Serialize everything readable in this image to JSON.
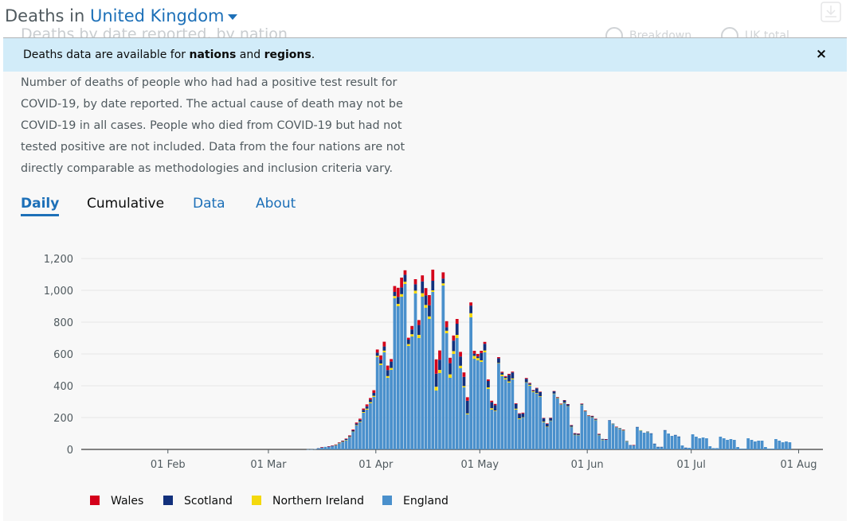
{
  "header": {
    "title_prefix": "Deaths in",
    "location": "United Kingdom",
    "ghost_title": "Deaths by date reported, by nation",
    "ghost_option_1": "Breakdown",
    "ghost_option_2": "UK total"
  },
  "banner": {
    "text_1": "Deaths data are available for ",
    "link_1": "nations",
    "text_2": " and ",
    "link_2": "regions",
    "text_3": ".",
    "close_label": "×"
  },
  "description": "Number of deaths of people who had had a positive test result for COVID-19, by date reported. The actual cause of death may not be COVID-19 in all cases. People who died from COVID-19 but had not tested positive are not included. Data from the four nations are not directly comparable as methodologies and inclusion criteria vary.",
  "tabs": [
    {
      "label": "Daily",
      "active": true
    },
    {
      "label": "Cumulative",
      "active": false
    },
    {
      "label": "Data",
      "active": false
    },
    {
      "label": "About",
      "active": false
    }
  ],
  "colors": {
    "wales": "#d4001a",
    "scotland": "#12307c",
    "northern_ireland": "#f4d90d",
    "england": "#4a90cc",
    "link": "#1d70b8"
  },
  "chart_data": {
    "type": "bar",
    "stacked": true,
    "x_start": "2020-01-07",
    "x_end": "2020-08-08",
    "x_tick_labels": [
      "01 Feb",
      "01 Mar",
      "01 Apr",
      "01 May",
      "01 Jun",
      "01 Jul",
      "01 Aug"
    ],
    "x_tick_dates": [
      "2020-02-01",
      "2020-03-01",
      "2020-04-01",
      "2020-05-01",
      "2020-06-01",
      "2020-07-01",
      "2020-08-01"
    ],
    "ylim": [
      0,
      1200
    ],
    "y_ticks": [
      0,
      200,
      400,
      600,
      800,
      1000,
      1200
    ],
    "y_tick_labels": [
      "0",
      "200",
      "400",
      "600",
      "800",
      "1,000",
      "1,200"
    ],
    "grid": true,
    "legend_position": "bottom-left",
    "series": [
      {
        "name": "Wales",
        "color": "#d4001a",
        "values": [
          0,
          0,
          0,
          0,
          0,
          0,
          0,
          0,
          0,
          0,
          0,
          0,
          0,
          0,
          0,
          0,
          0,
          0,
          0,
          0,
          0,
          0,
          0,
          0,
          0,
          0,
          0,
          0,
          0,
          0,
          0,
          0,
          0,
          0,
          0,
          0,
          0,
          0,
          0,
          0,
          0,
          0,
          0,
          0,
          0,
          0,
          0,
          0,
          0,
          0,
          0,
          0,
          0,
          0,
          0,
          0,
          0,
          0,
          0,
          0,
          0,
          0,
          0,
          0,
          0,
          0,
          0,
          0,
          0,
          1,
          0,
          1,
          1,
          2,
          2,
          2,
          3,
          4,
          5,
          6,
          7,
          8,
          12,
          10,
          17,
          20,
          27,
          30,
          28,
          16,
          37,
          57,
          62,
          28,
          12,
          22,
          32,
          31,
          38,
          46,
          64,
          70,
          90,
          58,
          39,
          38,
          34,
          32,
          30,
          29,
          28,
          22,
          20,
          18,
          16,
          14,
          12,
          10,
          9,
          8,
          7,
          6,
          5,
          6,
          5,
          4,
          4,
          5,
          5,
          4,
          3,
          3,
          3,
          2,
          3,
          2,
          2,
          2,
          1,
          2,
          1,
          1,
          1,
          1,
          1,
          1,
          1,
          1,
          1,
          1,
          0,
          1,
          0,
          0,
          1,
          0,
          1,
          0,
          0,
          1,
          0,
          0,
          0,
          0,
          0,
          0,
          0,
          0,
          0,
          0,
          0,
          0,
          0,
          0,
          0,
          0,
          0,
          0,
          0,
          0,
          0,
          0,
          0,
          0,
          0,
          0,
          0,
          0,
          0,
          0,
          0,
          0,
          0,
          0,
          0,
          0,
          0,
          0,
          0,
          0,
          0,
          0,
          0,
          0,
          0,
          0,
          0,
          0,
          0
        ]
      },
      {
        "name": "Scotland",
        "color": "#12307c",
        "values": [
          0,
          0,
          0,
          0,
          0,
          0,
          0,
          0,
          0,
          0,
          0,
          0,
          0,
          0,
          0,
          0,
          0,
          0,
          0,
          0,
          0,
          0,
          0,
          0,
          0,
          0,
          0,
          0,
          0,
          0,
          0,
          0,
          0,
          0,
          0,
          0,
          0,
          0,
          0,
          0,
          0,
          0,
          0,
          0,
          0,
          0,
          0,
          0,
          0,
          0,
          0,
          0,
          0,
          0,
          0,
          0,
          0,
          0,
          0,
          0,
          0,
          0,
          0,
          0,
          0,
          0,
          0,
          0,
          1,
          1,
          0,
          1,
          2,
          2,
          3,
          4,
          5,
          6,
          8,
          10,
          12,
          14,
          15,
          16,
          18,
          20,
          24,
          26,
          38,
          40,
          26,
          44,
          42,
          44,
          28,
          30,
          40,
          62,
          74,
          60,
          70,
          60,
          82,
          64,
          30,
          22,
          70,
          66,
          70,
          58,
          58,
          80,
          48,
          14,
          10,
          46,
          42,
          40,
          38,
          34,
          30,
          12,
          8,
          42,
          38,
          30,
          28,
          24,
          22,
          8,
          6,
          30,
          26,
          22,
          18,
          16,
          14,
          4,
          4,
          15,
          12,
          10,
          9,
          8,
          6,
          2,
          2,
          8,
          6,
          6,
          5,
          4,
          3,
          1,
          1,
          3,
          3,
          2,
          2,
          2,
          1,
          0,
          0,
          1,
          1,
          1,
          1,
          1,
          1,
          0,
          0,
          1,
          1,
          0,
          1,
          0,
          0,
          0,
          0,
          0,
          0,
          0,
          0,
          0,
          0,
          0,
          0,
          0,
          0,
          0,
          0,
          0,
          0,
          0,
          0,
          0,
          0,
          0,
          0,
          0,
          0,
          0,
          0,
          0,
          0
        ]
      },
      {
        "name": "Northern Ireland",
        "color": "#f4d90d",
        "values": [
          0,
          0,
          0,
          0,
          0,
          0,
          0,
          0,
          0,
          0,
          0,
          0,
          0,
          0,
          0,
          0,
          0,
          0,
          0,
          0,
          0,
          0,
          0,
          0,
          0,
          0,
          0,
          0,
          0,
          0,
          0,
          0,
          0,
          0,
          0,
          0,
          0,
          0,
          0,
          0,
          0,
          0,
          0,
          0,
          0,
          0,
          0,
          0,
          0,
          0,
          0,
          0,
          0,
          0,
          0,
          0,
          0,
          0,
          0,
          0,
          0,
          0,
          0,
          0,
          0,
          0,
          0,
          0,
          0,
          0,
          0,
          0,
          0,
          1,
          1,
          1,
          2,
          2,
          2,
          3,
          4,
          5,
          6,
          7,
          7,
          8,
          10,
          11,
          11,
          12,
          14,
          15,
          16,
          14,
          12,
          14,
          18,
          20,
          22,
          18,
          16,
          10,
          24,
          20,
          14,
          16,
          22,
          18,
          20,
          16,
          8,
          6,
          26,
          18,
          14,
          10,
          12,
          10,
          9,
          4,
          3,
          10,
          8,
          7,
          6,
          6,
          5,
          2,
          2,
          6,
          5,
          4,
          4,
          4,
          3,
          1,
          1,
          3,
          3,
          3,
          2,
          2,
          2,
          1,
          1,
          2,
          2,
          2,
          1,
          1,
          1,
          0,
          0,
          1,
          1,
          1,
          1,
          1,
          0,
          0,
          0,
          1,
          0,
          1,
          0,
          0,
          0,
          0,
          0,
          0,
          0,
          0,
          0,
          0,
          0,
          0,
          0,
          0,
          0,
          0,
          0,
          0,
          0,
          0,
          0,
          0,
          0,
          0,
          0,
          0,
          0,
          0,
          0,
          0,
          0,
          0,
          0,
          0,
          0,
          0,
          0,
          0,
          0
        ]
      },
      {
        "name": "England",
        "color": "#4a90cc",
        "values": [
          0,
          0,
          0,
          0,
          0,
          0,
          0,
          0,
          0,
          0,
          0,
          0,
          0,
          0,
          0,
          0,
          0,
          0,
          0,
          0,
          0,
          0,
          0,
          0,
          0,
          0,
          0,
          0,
          0,
          0,
          0,
          0,
          0,
          0,
          0,
          0,
          0,
          0,
          0,
          0,
          0,
          0,
          0,
          0,
          0,
          0,
          0,
          0,
          0,
          0,
          0,
          0,
          0,
          0,
          0,
          0,
          0,
          0,
          0,
          0,
          0,
          0,
          0,
          0,
          0,
          1,
          1,
          2,
          6,
          12,
          16,
          18,
          22,
          26,
          38,
          48,
          58,
          76,
          110,
          150,
          170,
          230,
          250,
          290,
          330,
          580,
          530,
          610,
          450,
          500,
          950,
          900,
          960,
          1040,
          650,
          710,
          980,
          700,
          960,
          890,
          820,
          990,
          370,
          480,
          1030,
          730,
          450,
          600,
          700,
          510,
          390,
          220,
          830,
          570,
          560,
          550,
          610,
          380,
          250,
          240,
          540,
          460,
          440,
          420,
          440,
          250,
          190,
          200,
          420,
          400,
          360,
          350,
          330,
          170,
          140,
          180,
          350,
          320,
          280,
          290,
          270,
          140,
          90,
          90,
          280,
          240,
          210,
          200,
          185,
          90,
          60,
          60,
          180,
          160,
          140,
          130,
          120,
          50,
          25,
          25,
          140,
          120,
          105,
          110,
          100,
          35,
          15,
          15,
          120,
          100,
          85,
          90,
          80,
          25,
          10,
          10,
          95,
          80,
          70,
          75,
          70,
          20,
          8,
          8,
          80,
          70,
          60,
          65,
          60,
          15,
          5,
          5,
          70,
          60,
          50,
          55,
          55,
          15,
          5,
          5,
          65,
          55,
          45,
          50,
          45
        ]
      }
    ],
    "legend": [
      "Wales",
      "Scotland",
      "Northern Ireland",
      "England"
    ]
  }
}
